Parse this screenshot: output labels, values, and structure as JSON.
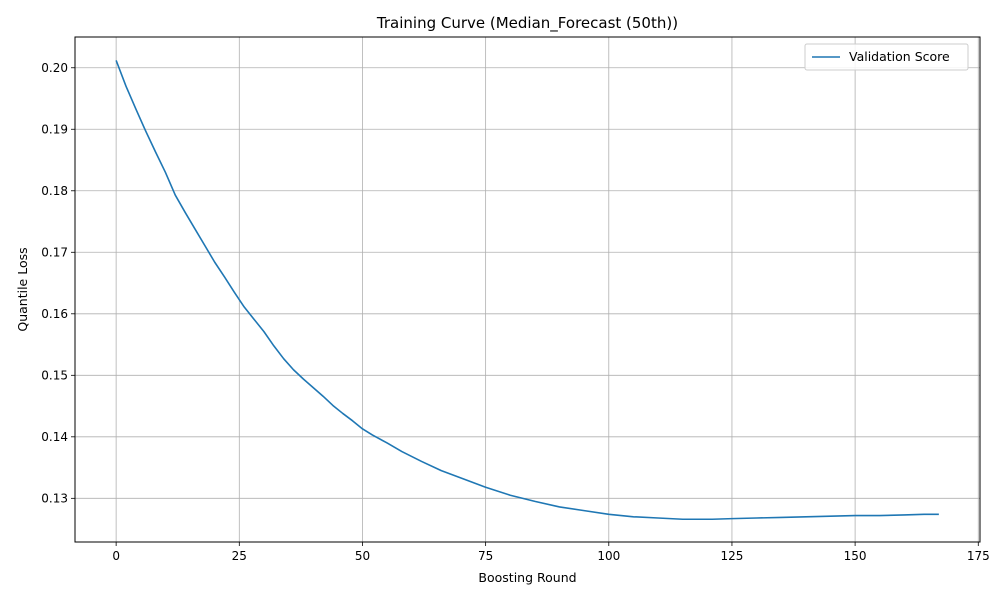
{
  "chart_data": {
    "type": "line",
    "title": "Training Curve (Median_Forecast (50th))",
    "xlabel": "Boosting Round",
    "ylabel": "Quantile Loss",
    "xlim": [
      -8.35,
      175.35
    ],
    "ylim": [
      0.1229,
      0.205
    ],
    "xticks": [
      0,
      25,
      50,
      75,
      100,
      125,
      150,
      175
    ],
    "yticks": [
      0.13,
      0.14,
      0.15,
      0.16,
      0.17,
      0.18,
      0.19,
      0.2
    ],
    "xtick_labels": [
      "0",
      "25",
      "50",
      "75",
      "100",
      "125",
      "150",
      "175"
    ],
    "ytick_labels": [
      "0.13",
      "0.14",
      "0.15",
      "0.16",
      "0.17",
      "0.18",
      "0.19",
      "0.20"
    ],
    "grid": true,
    "legend_position": "top-right",
    "colors": {
      "series": "#1f77b4",
      "grid": "#b0b0b0",
      "axes": "#000000"
    },
    "series": [
      {
        "name": "Validation Score",
        "points": [
          [
            0,
            0.2012
          ],
          [
            2,
            0.197
          ],
          [
            4,
            0.1933
          ],
          [
            6,
            0.1897
          ],
          [
            8,
            0.1863
          ],
          [
            10,
            0.183
          ],
          [
            12,
            0.1793
          ],
          [
            14,
            0.1765
          ],
          [
            16,
            0.1738
          ],
          [
            18,
            0.1711
          ],
          [
            20,
            0.1684
          ],
          [
            22,
            0.166
          ],
          [
            24,
            0.1635
          ],
          [
            26,
            0.1611
          ],
          [
            28,
            0.1591
          ],
          [
            30,
            0.1571
          ],
          [
            32,
            0.1548
          ],
          [
            34,
            0.1527
          ],
          [
            36,
            0.1509
          ],
          [
            38,
            0.1494
          ],
          [
            40,
            0.148
          ],
          [
            42,
            0.1466
          ],
          [
            44,
            0.1451
          ],
          [
            46,
            0.1438
          ],
          [
            48,
            0.1426
          ],
          [
            50,
            0.1413
          ],
          [
            52,
            0.1403
          ],
          [
            55,
            0.139
          ],
          [
            58,
            0.1376
          ],
          [
            62,
            0.136
          ],
          [
            66,
            0.1345
          ],
          [
            70,
            0.1333
          ],
          [
            75,
            0.1318
          ],
          [
            80,
            0.1305
          ],
          [
            85,
            0.1295
          ],
          [
            90,
            0.1286
          ],
          [
            95,
            0.128
          ],
          [
            100,
            0.1274
          ],
          [
            105,
            0.127
          ],
          [
            110,
            0.1268
          ],
          [
            115,
            0.1266
          ],
          [
            118,
            0.1266
          ],
          [
            121,
            0.1266
          ],
          [
            125,
            0.1267
          ],
          [
            130,
            0.1268
          ],
          [
            135,
            0.1269
          ],
          [
            140,
            0.127
          ],
          [
            145,
            0.1271
          ],
          [
            150,
            0.1272
          ],
          [
            155,
            0.1272
          ],
          [
            160,
            0.1273
          ],
          [
            164,
            0.1274
          ],
          [
            167,
            0.1274
          ]
        ]
      }
    ]
  }
}
